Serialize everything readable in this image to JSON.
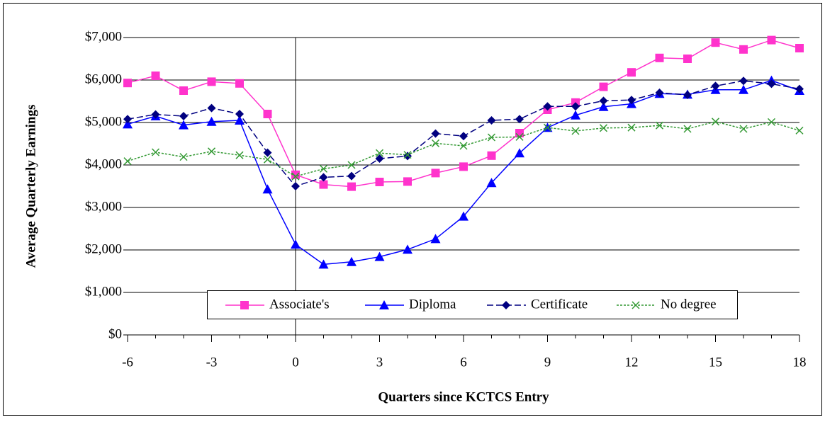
{
  "chart_data": {
    "type": "line",
    "x_label": "Quarters since KCTCS Entry",
    "y_label": "Average Quarterly Earnings",
    "x": [
      -6,
      -5,
      -4,
      -3,
      -2,
      -1,
      0,
      1,
      2,
      3,
      4,
      5,
      6,
      7,
      8,
      9,
      10,
      11,
      12,
      13,
      14,
      15,
      16,
      17,
      18
    ],
    "xlim": [
      -6,
      18
    ],
    "xticks": [
      -6,
      -3,
      0,
      3,
      6,
      9,
      12,
      15,
      18
    ],
    "ylim": [
      0,
      7000
    ],
    "yticks": [
      {
        "value": 0,
        "label": "$0"
      },
      {
        "value": 1000,
        "label": "$1,000"
      },
      {
        "value": 2000,
        "label": "$2,000"
      },
      {
        "value": 3000,
        "label": "$3,000"
      },
      {
        "value": 4000,
        "label": "$4,000"
      },
      {
        "value": 5000,
        "label": "$5,000"
      },
      {
        "value": 6000,
        "label": "$6,000"
      },
      {
        "value": 7000,
        "label": "$7,000"
      }
    ],
    "grid": true,
    "legend": "bottom",
    "series": [
      {
        "name": "Associate's",
        "color": "#ff33cc",
        "marker": "square",
        "dash": "solid",
        "values": [
          5930,
          6100,
          5750,
          5960,
          5920,
          5200,
          3770,
          3540,
          3490,
          3600,
          3610,
          3810,
          3960,
          4220,
          4750,
          5300,
          5470,
          5840,
          6180,
          6520,
          6500,
          6880,
          6720,
          6940,
          6750
        ]
      },
      {
        "name": "Diploma",
        "color": "#0000ff",
        "marker": "triangle",
        "dash": "solid",
        "values": [
          4960,
          5150,
          4940,
          5020,
          5050,
          3430,
          2130,
          1660,
          1720,
          1840,
          2010,
          2260,
          2790,
          3580,
          4280,
          4880,
          5170,
          5370,
          5440,
          5680,
          5660,
          5770,
          5770,
          5990,
          5750
        ]
      },
      {
        "name": "Certificate",
        "color": "#000080",
        "marker": "diamond",
        "dash": "dashed",
        "values": [
          5080,
          5190,
          5150,
          5340,
          5200,
          4290,
          3500,
          3710,
          3740,
          4150,
          4210,
          4740,
          4680,
          5050,
          5080,
          5380,
          5380,
          5510,
          5530,
          5700,
          5650,
          5860,
          5980,
          5910,
          5790
        ]
      },
      {
        "name": "No degree",
        "color": "#339933",
        "marker": "x",
        "dash": "dotted",
        "values": [
          4090,
          4300,
          4190,
          4320,
          4230,
          4130,
          3730,
          3910,
          4000,
          4280,
          4240,
          4510,
          4450,
          4650,
          4660,
          4880,
          4800,
          4870,
          4880,
          4930,
          4850,
          5020,
          4850,
          5010,
          4810
        ]
      }
    ]
  }
}
